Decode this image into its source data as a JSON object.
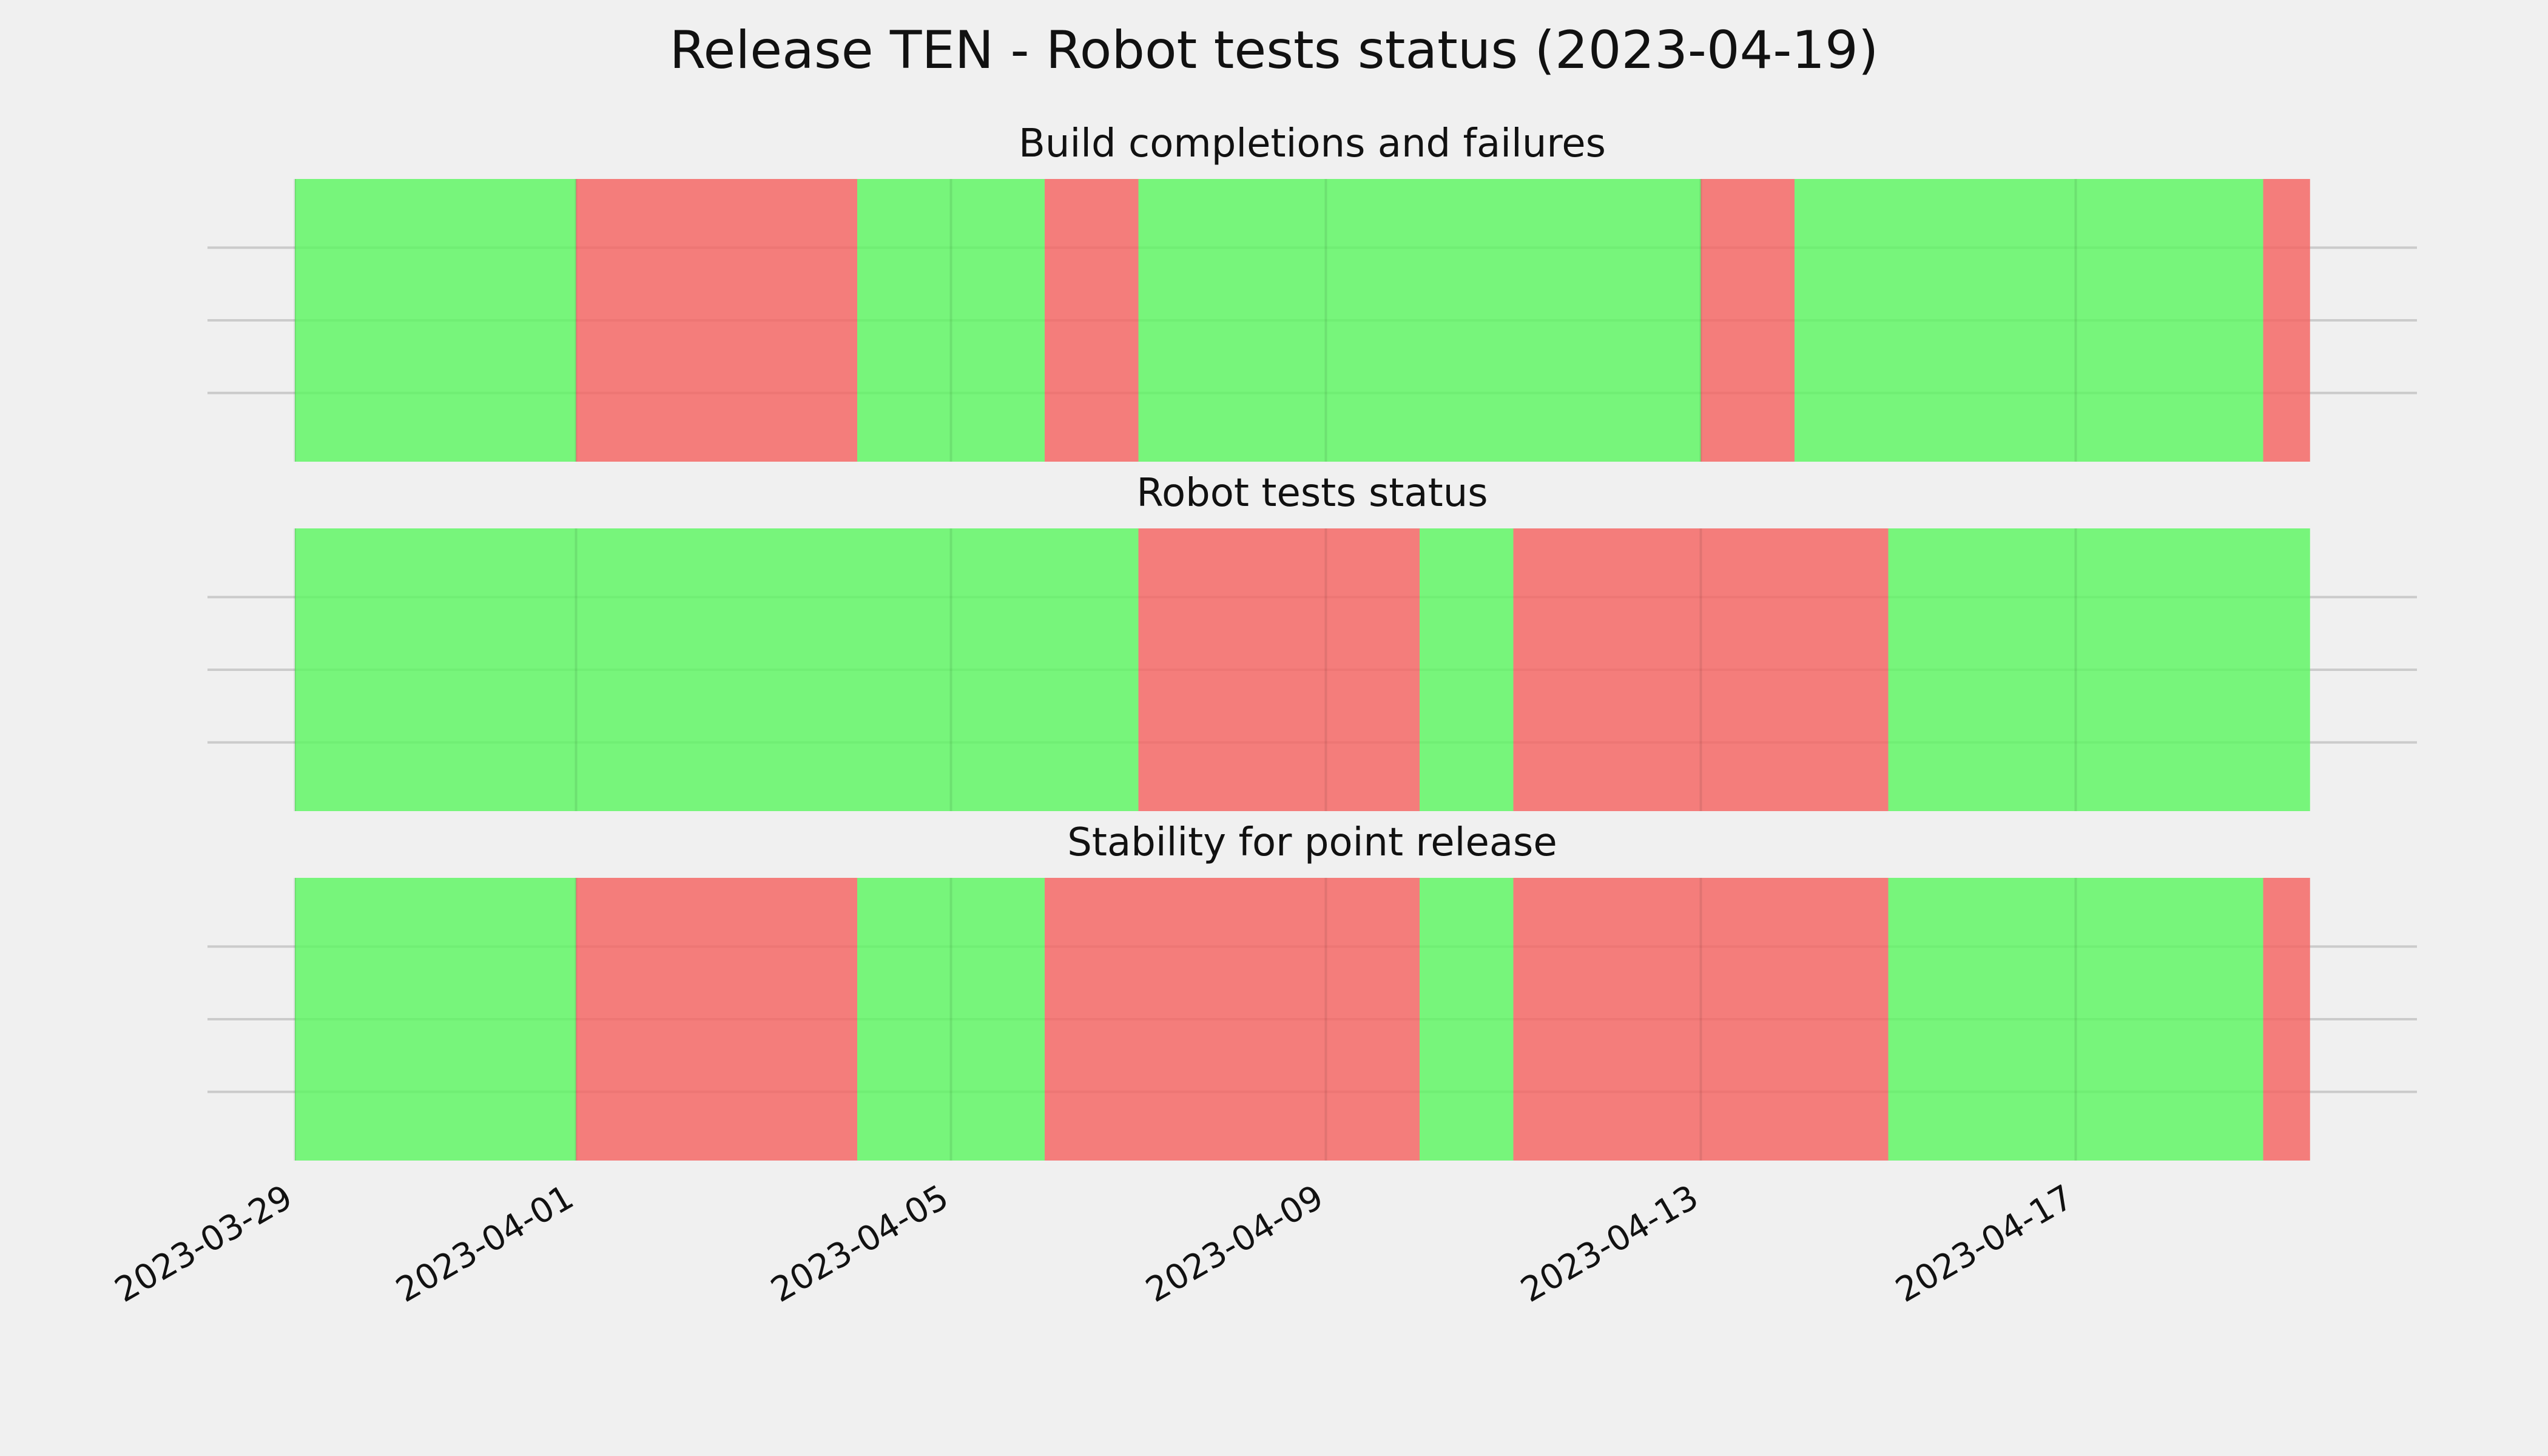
{
  "chart_data": {
    "type": "timeline",
    "title": "Release TEN - Robot tests status (2023-04-19)",
    "x_axis": {
      "type": "date",
      "range": [
        "2023-03-29",
        "2023-04-19"
      ],
      "tick_labels": [
        "2023-03-29",
        "2023-04-01",
        "2023-04-05",
        "2023-04-09",
        "2023-04-13",
        "2023-04-17"
      ]
    },
    "grid": true,
    "status_colors": {
      "pass": "#5cf560",
      "fail": "#f46360"
    },
    "panels": [
      {
        "title": "Build completions and failures",
        "segments": [
          {
            "start": "2023-03-29",
            "end": "2023-04-01",
            "status": "pass"
          },
          {
            "start": "2023-04-01",
            "end": "2023-04-04",
            "status": "fail"
          },
          {
            "start": "2023-04-04",
            "end": "2023-04-06",
            "status": "pass"
          },
          {
            "start": "2023-04-06",
            "end": "2023-04-07",
            "status": "fail"
          },
          {
            "start": "2023-04-07",
            "end": "2023-04-13",
            "status": "pass"
          },
          {
            "start": "2023-04-13",
            "end": "2023-04-14",
            "status": "fail"
          },
          {
            "start": "2023-04-14",
            "end": "2023-04-19",
            "status": "pass"
          },
          {
            "start": "2023-04-19",
            "end": "2023-04-19T12:00",
            "status": "fail"
          }
        ]
      },
      {
        "title": "Robot tests status",
        "segments": [
          {
            "start": "2023-03-29",
            "end": "2023-04-07",
            "status": "pass"
          },
          {
            "start": "2023-04-07",
            "end": "2023-04-10",
            "status": "fail"
          },
          {
            "start": "2023-04-10",
            "end": "2023-04-11",
            "status": "pass"
          },
          {
            "start": "2023-04-11",
            "end": "2023-04-15",
            "status": "fail"
          },
          {
            "start": "2023-04-15",
            "end": "2023-04-19T12:00",
            "status": "pass"
          }
        ]
      },
      {
        "title": "Stability for point release",
        "segments": [
          {
            "start": "2023-03-29",
            "end": "2023-04-01",
            "status": "pass"
          },
          {
            "start": "2023-04-01",
            "end": "2023-04-04",
            "status": "fail"
          },
          {
            "start": "2023-04-04",
            "end": "2023-04-06",
            "status": "pass"
          },
          {
            "start": "2023-04-06",
            "end": "2023-04-10",
            "status": "fail"
          },
          {
            "start": "2023-04-10",
            "end": "2023-04-11",
            "status": "pass"
          },
          {
            "start": "2023-04-11",
            "end": "2023-04-15",
            "status": "fail"
          },
          {
            "start": "2023-04-15",
            "end": "2023-04-19",
            "status": "pass"
          },
          {
            "start": "2023-04-19",
            "end": "2023-04-19T12:00",
            "status": "fail"
          }
        ]
      }
    ]
  }
}
